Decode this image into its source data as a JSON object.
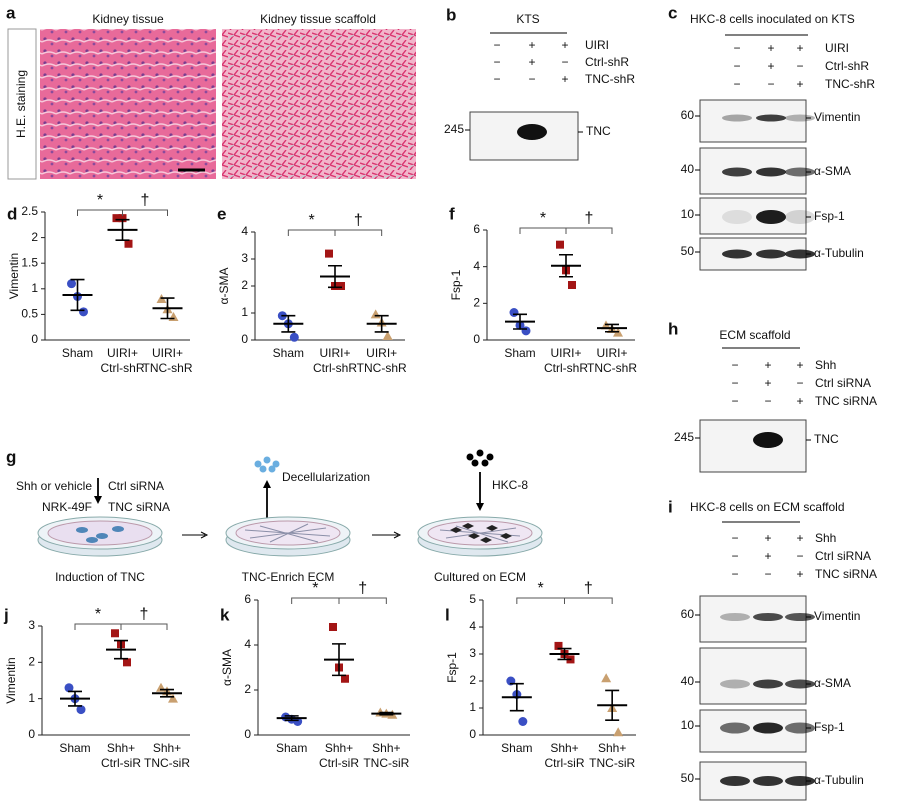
{
  "histology": {
    "label": "a",
    "side": "H.E. staining",
    "images": [
      "Kidney tissue",
      "Kidney tissue scaffold"
    ]
  },
  "blots": [
    {
      "label": "b",
      "title": "KTS",
      "rows": [
        {
          "name": "UIRI",
          "signs": [
            "−",
            "+",
            "+"
          ]
        },
        {
          "name": "Ctrl-shR",
          "signs": [
            "−",
            "+",
            "−"
          ]
        },
        {
          "name": "TNC-shR",
          "signs": [
            "−",
            "−",
            "+"
          ]
        }
      ],
      "bands": [
        {
          "marker": "245",
          "name": "TNC"
        }
      ]
    },
    {
      "label": "c",
      "title": "HKC-8 cells inoculated on KTS",
      "rows": [
        {
          "name": "UIRI",
          "signs": [
            "−",
            "+",
            "+"
          ]
        },
        {
          "name": "Ctrl-shR",
          "signs": [
            "−",
            "+",
            "−"
          ]
        },
        {
          "name": "TNC-shR",
          "signs": [
            "−",
            "−",
            "+"
          ]
        }
      ],
      "bands": [
        {
          "marker": "60",
          "name": "Vimentin"
        },
        {
          "marker": "40",
          "name": "α-SMA"
        },
        {
          "marker": "10",
          "name": "Fsp-1"
        },
        {
          "marker": "50",
          "name": "α-Tubulin"
        }
      ]
    },
    {
      "label": "h",
      "title": "ECM scaffold",
      "rows": [
        {
          "name": "Shh",
          "signs": [
            "−",
            "+",
            "+"
          ]
        },
        {
          "name": "Ctrl siRNA",
          "signs": [
            "−",
            "+",
            "−"
          ]
        },
        {
          "name": "TNC siRNA",
          "signs": [
            "−",
            "−",
            "+"
          ]
        }
      ],
      "bands": [
        {
          "marker": "245",
          "name": "TNC"
        }
      ]
    },
    {
      "label": "i",
      "title": "HKC-8 cells on ECM scaffold",
      "rows": [
        {
          "name": "Shh",
          "signs": [
            "−",
            "+",
            "+"
          ]
        },
        {
          "name": "Ctrl siRNA",
          "signs": [
            "−",
            "+",
            "−"
          ]
        },
        {
          "name": "TNC siRNA",
          "signs": [
            "−",
            "−",
            "+"
          ]
        }
      ],
      "bands": [
        {
          "marker": "60",
          "name": "Vimentin"
        },
        {
          "marker": "40",
          "name": "α-SMA"
        },
        {
          "marker": "10",
          "name": "Fsp-1"
        },
        {
          "marker": "50",
          "name": "α-Tubulin"
        }
      ]
    }
  ],
  "schematic": {
    "label": "g",
    "treatment": "Shh or vehicle",
    "cells": "NRK-49F",
    "sirna": [
      "Ctrl siRNA",
      "TNC siRNA"
    ],
    "decell": "Decellularization",
    "seed": "HKC-8",
    "steps": [
      "Induction of TNC",
      "TNC-Enrich ECM",
      "Cultured on ECM"
    ]
  },
  "chart_data": [
    {
      "type": "dot",
      "label": "d",
      "ylabel": "Vimentin",
      "categories": [
        [
          "Sham"
        ],
        [
          "UIRI+",
          "Ctrl-shR"
        ],
        [
          "UIRI+",
          "TNC-shR"
        ]
      ],
      "values": [
        [
          1.1,
          0.85,
          0.55
        ],
        [
          2.38,
          2.38,
          1.88
        ],
        [
          0.8,
          0.6,
          0.45
        ]
      ],
      "mean": [
        0.88,
        2.15,
        0.62
      ],
      "error": [
        0.3,
        0.2,
        0.2
      ],
      "colors": [
        "#3a4fc4",
        "#a31515",
        "#c9a070"
      ],
      "markers": [
        "circle",
        "square",
        "triangle"
      ],
      "ylim": [
        0,
        2.5
      ],
      "yticks": [
        0,
        0.5,
        1.0,
        1.5,
        2.0,
        2.5
      ],
      "sig": [
        "*",
        "†"
      ]
    },
    {
      "type": "dot",
      "label": "e",
      "ylabel": "α-SMA",
      "categories": [
        [
          "Sham"
        ],
        [
          "UIRI+",
          "Ctrl-shR"
        ],
        [
          "UIRI+",
          "TNC-shR"
        ]
      ],
      "values": [
        [
          0.9,
          0.6,
          0.1
        ],
        [
          3.2,
          2.0,
          2.0
        ],
        [
          0.95,
          0.65,
          0.15
        ]
      ],
      "mean": [
        0.6,
        2.35,
        0.6
      ],
      "error": [
        0.3,
        0.4,
        0.3
      ],
      "colors": [
        "#3a4fc4",
        "#a31515",
        "#c9a070"
      ],
      "markers": [
        "circle",
        "square",
        "triangle"
      ],
      "ylim": [
        0,
        4
      ],
      "yticks": [
        0,
        1,
        2,
        3,
        4
      ],
      "sig": [
        "*",
        "†"
      ]
    },
    {
      "type": "dot",
      "label": "f",
      "ylabel": "Fsp-1",
      "categories": [
        [
          "Sham"
        ],
        [
          "UIRI+",
          "Ctrl-shR"
        ],
        [
          "UIRI+",
          "TNC-shR"
        ]
      ],
      "values": [
        [
          1.5,
          0.8,
          0.5
        ],
        [
          5.2,
          3.8,
          3.0
        ],
        [
          0.8,
          0.6,
          0.4
        ]
      ],
      "mean": [
        1.0,
        4.05,
        0.65
      ],
      "error": [
        0.4,
        0.6,
        0.2
      ],
      "colors": [
        "#3a4fc4",
        "#a31515",
        "#c9a070"
      ],
      "markers": [
        "circle",
        "square",
        "triangle"
      ],
      "ylim": [
        0,
        6
      ],
      "yticks": [
        0,
        2,
        4,
        6
      ],
      "sig": [
        "*",
        "†"
      ]
    },
    {
      "type": "dot",
      "label": "j",
      "ylabel": "Vimentin",
      "categories": [
        [
          "Sham"
        ],
        [
          "Shh+",
          "Ctrl-siR"
        ],
        [
          "Shh+",
          "TNC-siR"
        ]
      ],
      "values": [
        [
          1.3,
          1.0,
          0.7
        ],
        [
          2.8,
          2.5,
          2.0
        ],
        [
          1.3,
          1.2,
          1.0
        ]
      ],
      "mean": [
        1.0,
        2.35,
        1.15
      ],
      "error": [
        0.2,
        0.25,
        0.1
      ],
      "colors": [
        "#3a4fc4",
        "#a31515",
        "#c9a070"
      ],
      "markers": [
        "circle",
        "square",
        "triangle"
      ],
      "ylim": [
        0,
        3
      ],
      "yticks": [
        0,
        1,
        2,
        3
      ],
      "sig": [
        "*",
        "†"
      ]
    },
    {
      "type": "dot",
      "label": "k",
      "ylabel": "α-SMA",
      "categories": [
        [
          "Sham"
        ],
        [
          "Shh+",
          "Ctrl-siR"
        ],
        [
          "Shh+",
          "TNC-siR"
        ]
      ],
      "values": [
        [
          0.8,
          0.7,
          0.6
        ],
        [
          4.8,
          3.0,
          2.5
        ],
        [
          1.0,
          0.95,
          0.9
        ]
      ],
      "mean": [
        0.75,
        3.35,
        0.95
      ],
      "error": [
        0.1,
        0.7,
        0.05
      ],
      "colors": [
        "#3a4fc4",
        "#a31515",
        "#c9a070"
      ],
      "markers": [
        "circle",
        "square",
        "triangle"
      ],
      "ylim": [
        0,
        6
      ],
      "yticks": [
        0,
        2,
        4,
        6
      ],
      "sig": [
        "*",
        "†"
      ]
    },
    {
      "type": "dot",
      "label": "l",
      "ylabel": "Fsp-1",
      "categories": [
        [
          "Sham"
        ],
        [
          "Shh+",
          "Ctrl-siR"
        ],
        [
          "Shh+",
          "TNC-siR"
        ]
      ],
      "values": [
        [
          2.0,
          1.5,
          0.5
        ],
        [
          3.3,
          3.0,
          2.8
        ],
        [
          2.1,
          1.0,
          0.1
        ]
      ],
      "mean": [
        1.4,
        3.0,
        1.1
      ],
      "error": [
        0.5,
        0.2,
        0.55
      ],
      "colors": [
        "#3a4fc4",
        "#a31515",
        "#c9a070"
      ],
      "markers": [
        "circle",
        "square",
        "triangle"
      ],
      "ylim": [
        0,
        5
      ],
      "yticks": [
        0,
        1,
        2,
        3,
        4,
        5
      ],
      "sig": [
        "*",
        "†"
      ]
    }
  ]
}
